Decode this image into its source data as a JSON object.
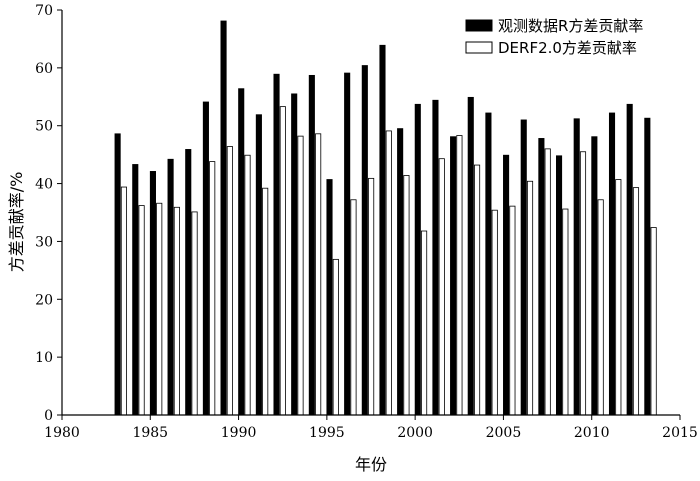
{
  "chart_data": {
    "type": "bar",
    "xlabel": "年份",
    "ylabel": "方差贡献率/%",
    "xlim": [
      1980,
      2015
    ],
    "ylim": [
      0,
      70
    ],
    "x_ticks": [
      1980,
      1985,
      1990,
      1995,
      2000,
      2005,
      2010,
      2015
    ],
    "y_ticks": [
      0,
      10,
      20,
      30,
      40,
      50,
      60,
      70
    ],
    "legend_position": "top-right",
    "grid": false,
    "categories": [
      1983,
      1984,
      1985,
      1986,
      1987,
      1988,
      1989,
      1990,
      1991,
      1992,
      1993,
      1994,
      1995,
      1996,
      1997,
      1998,
      1999,
      2000,
      2001,
      2002,
      2003,
      2004,
      2005,
      2006,
      2007,
      2008,
      2009,
      2010,
      2011,
      2012,
      2013
    ],
    "series": [
      {
        "name": "观测数据R方差贡献率",
        "color": "#000000",
        "values": [
          48.6,
          43.3,
          42.1,
          44.2,
          45.9,
          54.1,
          68.1,
          56.4,
          51.9,
          58.9,
          55.5,
          58.7,
          40.7,
          59.1,
          60.4,
          63.9,
          49.5,
          53.7,
          54.4,
          48.1,
          54.9,
          52.2,
          44.9,
          51.0,
          47.8,
          44.8,
          51.2,
          48.1,
          52.2,
          53.7,
          51.3
        ]
      },
      {
        "name": "DERF2.0方差贡献率",
        "color": "#ffffff",
        "values": [
          39.4,
          36.2,
          36.6,
          35.9,
          35.1,
          43.8,
          46.4,
          44.9,
          39.2,
          53.3,
          48.2,
          48.6,
          26.9,
          37.2,
          40.9,
          49.1,
          41.4,
          31.8,
          44.3,
          48.3,
          43.2,
          35.4,
          36.1,
          40.4,
          46.0,
          35.6,
          45.5,
          37.2,
          40.7,
          39.3,
          32.4
        ]
      }
    ]
  }
}
